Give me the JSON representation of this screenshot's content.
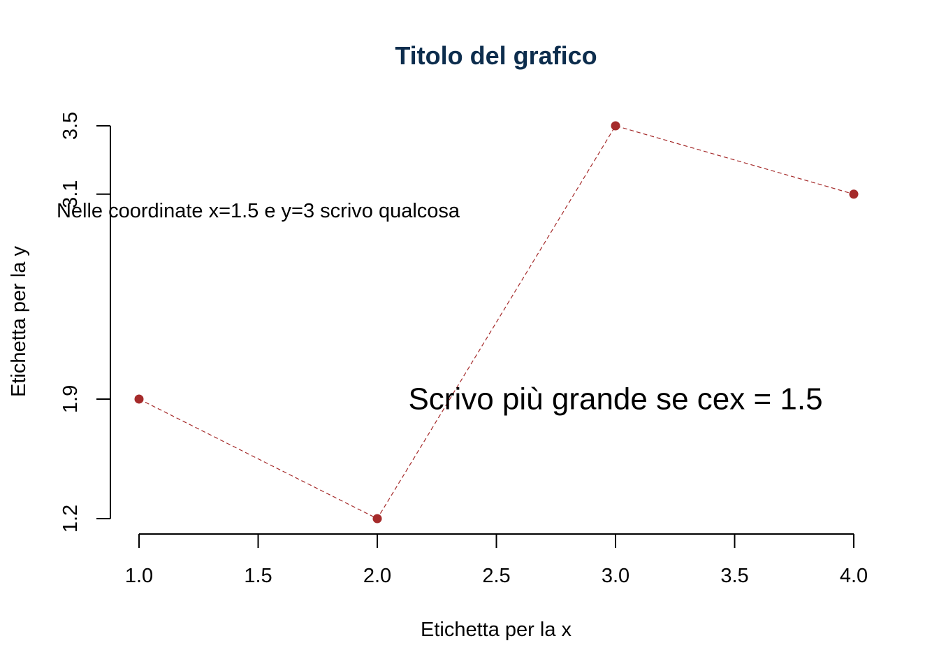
{
  "chart_data": {
    "type": "line",
    "title": "Titolo del grafico",
    "xlabel": "Etichetta per la x",
    "ylabel": "Etichetta per la y",
    "xlim": [
      1.0,
      4.0
    ],
    "ylim": [
      1.2,
      3.5
    ],
    "x_ticks": [
      "1.0",
      "1.5",
      "2.0",
      "2.5",
      "3.0",
      "3.5",
      "4.0"
    ],
    "x_tick_values": [
      1.0,
      1.5,
      2.0,
      2.5,
      3.0,
      3.5,
      4.0
    ],
    "y_ticks": [
      "1.2",
      "1.9",
      "3.1",
      "3.5"
    ],
    "y_tick_values": [
      1.2,
      1.9,
      3.1,
      3.5
    ],
    "series": [
      {
        "x": [
          1,
          2,
          3,
          4
        ],
        "y": [
          1.9,
          1.2,
          3.5,
          3.1
        ],
        "line_style": "dashed",
        "marker": "filled-circle",
        "color": "#A52A2A"
      }
    ],
    "annotations": [
      {
        "text": "Nelle coordinate x=1.5 e y=3 scrivo qualcosa",
        "x": 1.5,
        "y": 3.0,
        "size": "normal"
      },
      {
        "text": "Scrivo più grande se cex = 1.5",
        "x": 3.0,
        "y": 1.9,
        "size": "large"
      }
    ],
    "title_color": "#0D2D4D",
    "grid": false,
    "legend": "none"
  }
}
